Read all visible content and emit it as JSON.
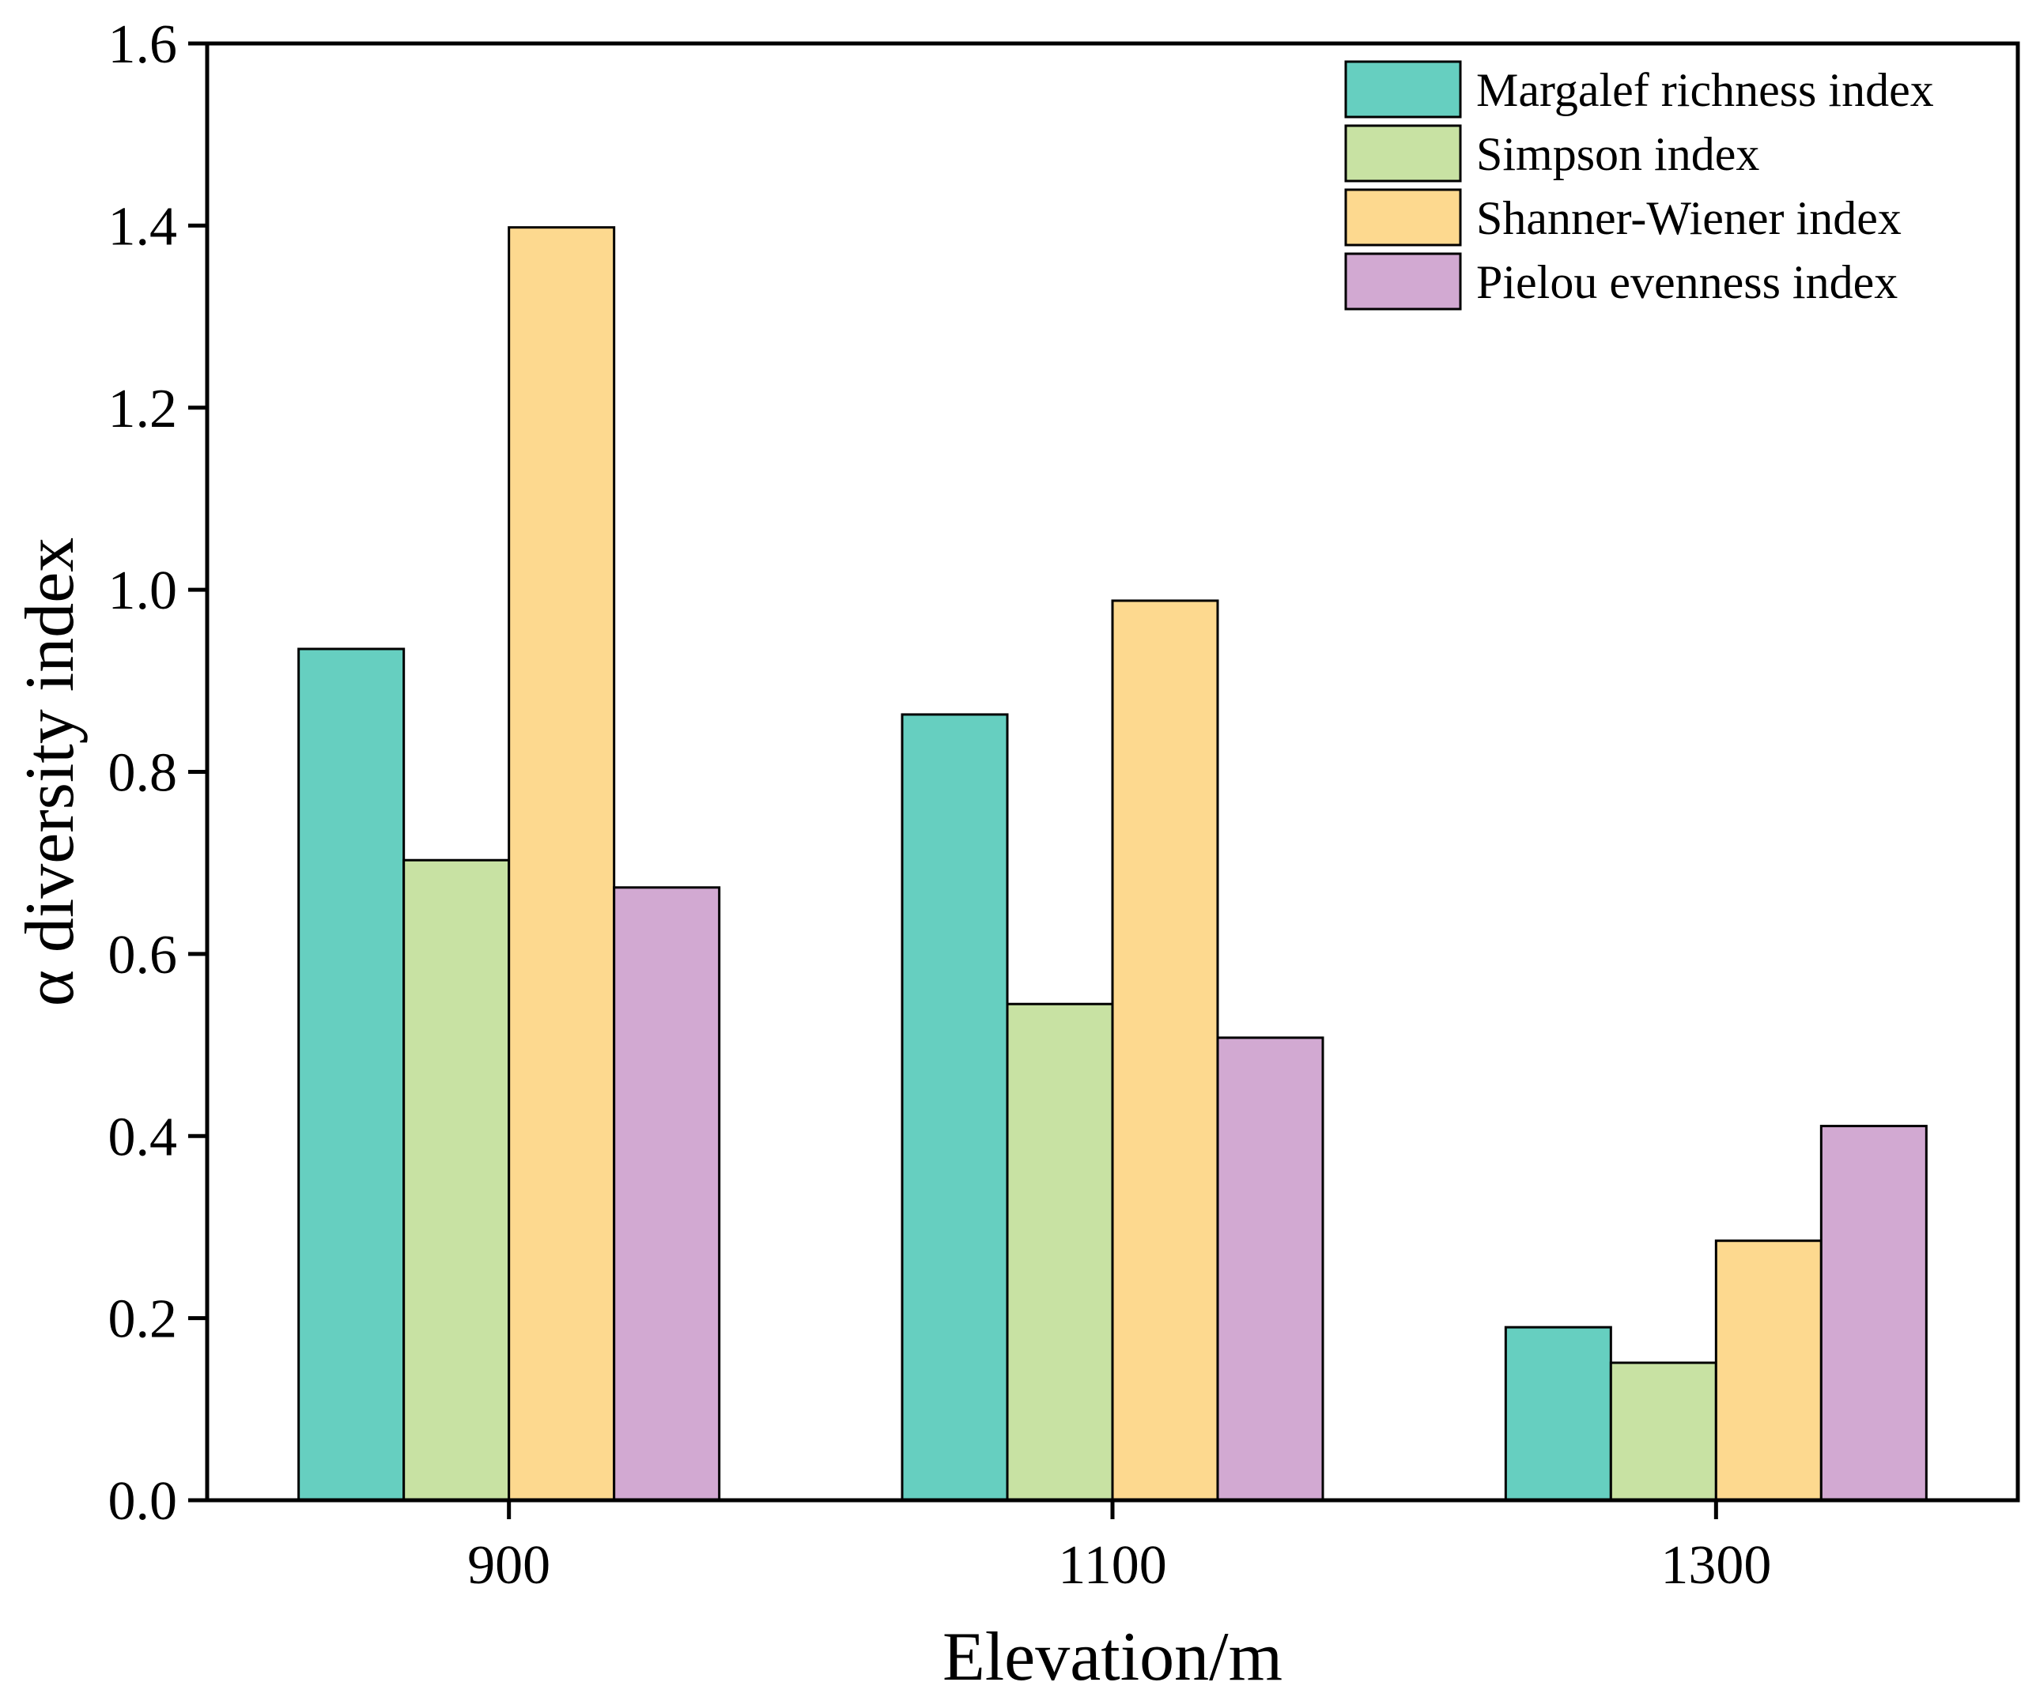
{
  "chart_data": {
    "type": "bar",
    "title": "",
    "xlabel": "Elevation/m",
    "ylabel": "α diversity index",
    "categories": [
      "900",
      "1100",
      "1300"
    ],
    "ylim": [
      0,
      1.6
    ],
    "yticks": [
      "0.0",
      "0.2",
      "0.4",
      "0.6",
      "0.8",
      "1.0",
      "1.2",
      "1.4",
      "1.6"
    ],
    "legend_position": "top-right",
    "grid": false,
    "series": [
      {
        "name": "Margalef richness index",
        "color": "#66CFC0",
        "values": [
          0.935,
          0.863,
          0.19
        ]
      },
      {
        "name": "Simpson index",
        "color": "#C8E2A3",
        "values": [
          0.703,
          0.545,
          0.151
        ]
      },
      {
        "name": "Shanner-Wiener index",
        "color": "#FDD98F",
        "values": [
          1.398,
          0.988,
          0.285
        ]
      },
      {
        "name": "Pielou evenness index",
        "color": "#D2A9D2",
        "values": [
          0.673,
          0.508,
          0.411
        ]
      }
    ]
  }
}
